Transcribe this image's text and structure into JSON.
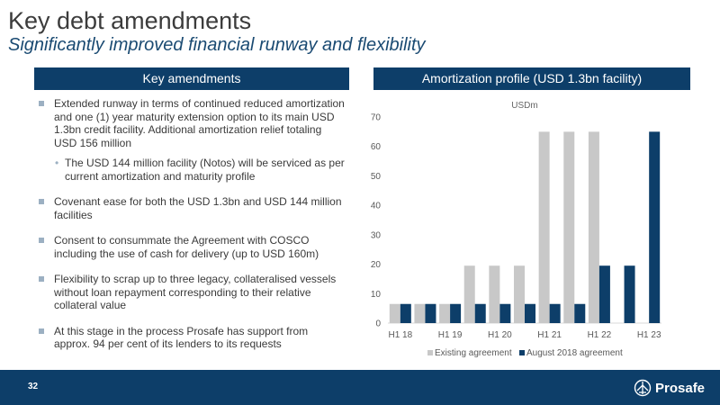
{
  "title": "Key debt amendments",
  "subtitle": "Significantly improved financial runway and flexibility",
  "left_header": "Key amendments",
  "right_header": "Amortization profile (USD 1.3bn facility)",
  "bullets": [
    {
      "text": "Extended runway in terms of continued reduced amortization and one (1) year maturity extension option to its main USD 1.3bn credit facility. Additional amortization relief totaling USD 156 million",
      "sub": [
        "The USD 144 million facility (Notos) will be serviced as per current amortization and maturity profile"
      ]
    },
    {
      "text": "Covenant ease for both the USD 1.3bn and USD 144 million facilities"
    },
    {
      "text": "Consent to consummate the Agreement with COSCO including the use of cash for delivery (up to USD 160m)"
    },
    {
      "text": "Flexibility to scrap up to three legacy, collateralised vessels without loan repayment corresponding to their relative collateral value"
    },
    {
      "text": "At this stage in the process Prosafe has support from approx. 94 per cent of its lenders to its requests"
    }
  ],
  "chart_data": {
    "type": "bar",
    "title": "USDm",
    "categories": [
      "H1 18",
      "",
      "H1 19",
      "",
      "H1 20",
      "",
      "H1 21",
      "",
      "H1 22",
      "",
      "H1 23"
    ],
    "series": [
      {
        "name": "Existing agreement",
        "color": "#c8c8c8",
        "values": [
          6.5,
          6.5,
          6.5,
          19.5,
          19.5,
          19.5,
          65,
          65,
          65,
          0,
          0
        ]
      },
      {
        "name": "August 2018 agreement",
        "color": "#0d3e69",
        "values": [
          6.5,
          6.5,
          6.5,
          6.5,
          6.5,
          6.5,
          6.5,
          6.5,
          19.5,
          19.5,
          65
        ]
      }
    ],
    "yticks": [
      0,
      10,
      20,
      30,
      40,
      50,
      60,
      70
    ],
    "ylim": [
      0,
      70
    ],
    "grid": false,
    "legend": "bottom"
  },
  "footer": {
    "page_number": "32",
    "logo_text": "Prosafe"
  }
}
